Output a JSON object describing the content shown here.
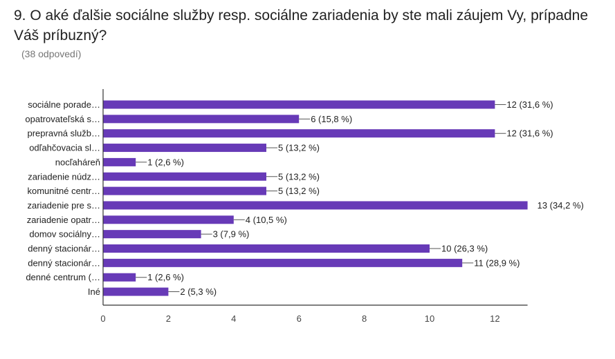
{
  "header": {
    "title": "9. O aké ďalšie sociálne služby resp. sociálne zariadenia by ste mali záujem Vy, prípadne Váš príbuzný?",
    "subtitle": "(38 odpovedí)"
  },
  "colors": {
    "bar": "#673ab7",
    "axis": "#333333",
    "text": "#212121",
    "muted": "#757575"
  },
  "chart_data": {
    "type": "bar",
    "orientation": "horizontal",
    "categories": [
      "sociálne porade…",
      "opatrovateľská s…",
      "prepravná služb…",
      "odľahčovacia sl…",
      "nocľaháreň",
      "zariadenie núdz…",
      "komunitné centr…",
      "zariadenie pre s…",
      "zariadenie opatr…",
      "domov sociálny…",
      "denný stacionár…",
      "denný stacionár…",
      "denné centrum (…",
      "Iné"
    ],
    "values": [
      12,
      6,
      12,
      5,
      1,
      5,
      5,
      13,
      4,
      3,
      10,
      11,
      1,
      2
    ],
    "data_labels": [
      "12 (31,6 %)",
      "6 (15,8 %)",
      "12 (31,6 %)",
      "5 (13,2 %)",
      "1 (2,6 %)",
      "5 (13,2 %)",
      "5 (13,2 %)",
      "13 (34,2 %)",
      "4 (10,5 %)",
      "3 (7,9 %)",
      "10 (26,3 %)",
      "11 (28,9 %)",
      "1 (2,6 %)",
      "2 (5,3 %)"
    ],
    "x_ticks": [
      "0",
      "2",
      "4",
      "6",
      "8",
      "10",
      "12"
    ],
    "xlim": [
      0,
      13
    ],
    "title": "",
    "xlabel": "",
    "ylabel": "",
    "grid": false,
    "legend": "none"
  }
}
